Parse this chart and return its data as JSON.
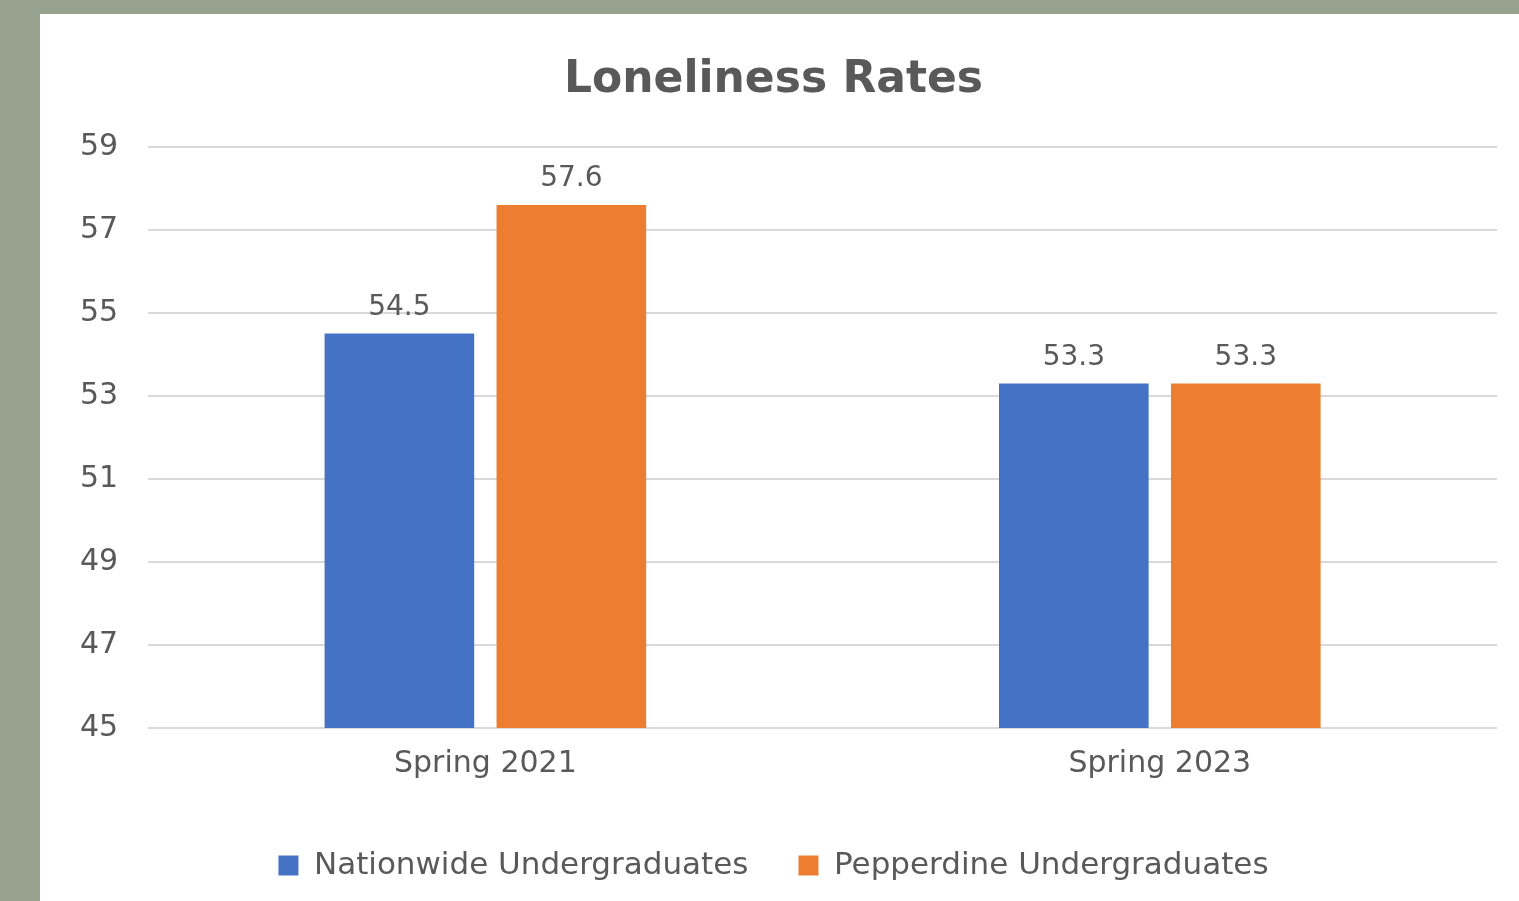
{
  "chart_data": {
    "type": "bar",
    "title": "Loneliness Rates",
    "categories": [
      "Spring 2021",
      "Spring 2023"
    ],
    "series": [
      {
        "name": "Nationwide Undergraduates",
        "color": "#4472c4",
        "values": [
          54.5,
          53.3
        ]
      },
      {
        "name": "Pepperdine Undergraduates",
        "color": "#ed7d31",
        "values": [
          57.6,
          53.3
        ]
      }
    ],
    "ylim": [
      45,
      59
    ],
    "yticks": [
      45,
      47,
      49,
      51,
      53,
      55,
      57,
      59
    ],
    "grid": "y",
    "legend": "bottom",
    "data_labels": true
  }
}
